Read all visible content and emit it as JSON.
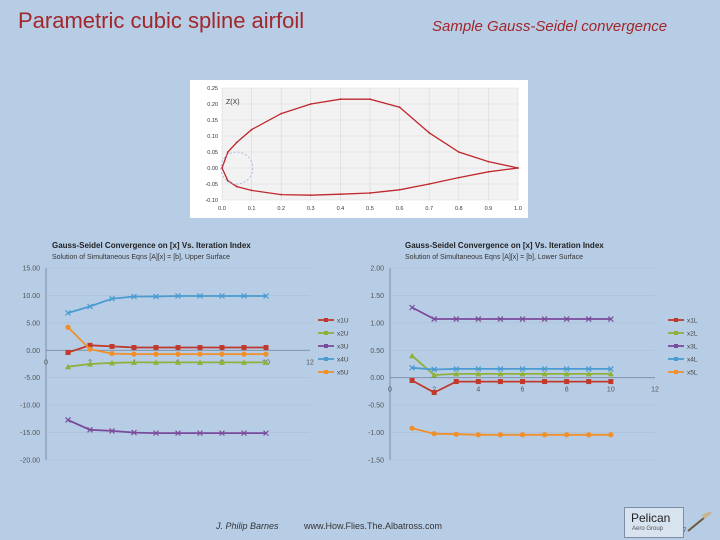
{
  "slide": {
    "title": "Parametric cubic spline airfoil",
    "subtitle": "Sample Gauss-Seidel convergence",
    "author": "J. Philip Barnes",
    "url": "www.How.Flies.The.Albatross.com",
    "logo_name": "Pelican",
    "logo_sub": "Aero Group",
    "page_number": "7"
  },
  "colors": {
    "background": "#b7cde6",
    "title": "#a2262a",
    "series_1": "#c0392b",
    "series_2": "#8fb03a",
    "series_3": "#7b4b9b",
    "series_4": "#4a9bd0",
    "series_5": "#f0902a",
    "airfoil": "#c0282d",
    "grid": "#d9d9d9"
  },
  "chart_data": [
    {
      "type": "line",
      "title": "Z(X)",
      "xlabel": "",
      "ylabel": "",
      "xlim": [
        0.0,
        1.0
      ],
      "ylim": [
        -0.1,
        0.25
      ],
      "x_ticks": [
        "0.0",
        "0.1",
        "0.2",
        "0.3",
        "0.4",
        "0.5",
        "0.6",
        "0.7",
        "0.8",
        "0.9",
        "1.0"
      ],
      "y_ticks": [
        "0.25",
        "0.20",
        "0.15",
        "0.10",
        "0.05",
        "0.00",
        "-0.05",
        "-0.10"
      ],
      "grid": true,
      "series": [
        {
          "x": [
            1.0,
            0.9,
            0.8,
            0.7,
            0.6,
            0.5,
            0.4,
            0.3,
            0.2,
            0.1,
            0.05,
            0.02,
            0.0,
            0.02,
            0.05,
            0.1,
            0.2,
            0.3,
            0.4,
            0.5,
            0.6,
            0.7,
            0.8,
            0.9,
            1.0
          ],
          "y": [
            0.0,
            0.02,
            0.05,
            0.11,
            0.19,
            0.215,
            0.215,
            0.2,
            0.17,
            0.12,
            0.08,
            0.05,
            0.0,
            -0.04,
            -0.058,
            -0.07,
            -0.083,
            -0.085,
            -0.082,
            -0.078,
            -0.068,
            -0.05,
            -0.03,
            -0.012,
            0.0
          ]
        }
      ],
      "annotation": "leading-edge circle"
    },
    {
      "type": "line",
      "title": "Gauss-Seidel Convergence on [x] Vs. Iteration Index",
      "subtitle": "Solution of Simultaneous Eqns [A][x] = [b], Upper Surface",
      "xlabel": "",
      "ylabel": "",
      "xlim": [
        0,
        12
      ],
      "ylim": [
        -20,
        15
      ],
      "x_ticks": [
        "0",
        "2",
        "4",
        "6",
        "8",
        "10",
        "12"
      ],
      "y_ticks": [
        "15.00",
        "10.00",
        "5.00",
        "0.00",
        "-5.00",
        "-10.00",
        "-15.00",
        "-20.00"
      ],
      "legend_position": "right",
      "categories": [
        1,
        2,
        3,
        4,
        5,
        6,
        7,
        8,
        9,
        10
      ],
      "series": [
        {
          "name": "x1U",
          "values": [
            -0.4,
            0.9,
            0.7,
            0.5,
            0.5,
            0.5,
            0.5,
            0.5,
            0.5,
            0.5
          ]
        },
        {
          "name": "x2U",
          "values": [
            -3.0,
            -2.5,
            -2.3,
            -2.2,
            -2.2,
            -2.2,
            -2.2,
            -2.2,
            -2.2,
            -2.2
          ]
        },
        {
          "name": "x3U",
          "values": [
            -12.7,
            -14.5,
            -14.7,
            -15.0,
            -15.1,
            -15.1,
            -15.1,
            -15.1,
            -15.1,
            -15.1
          ]
        },
        {
          "name": "x4U",
          "values": [
            6.8,
            8.0,
            9.4,
            9.8,
            9.8,
            9.9,
            9.9,
            9.9,
            9.9,
            9.9
          ]
        },
        {
          "name": "x5U",
          "values": [
            4.2,
            0.2,
            -0.6,
            -0.7,
            -0.7,
            -0.7,
            -0.7,
            -0.7,
            -0.7,
            -0.7
          ]
        }
      ]
    },
    {
      "type": "line",
      "title": "Gauss-Seidel Convergence on [x] Vs. Iteration Index",
      "subtitle": "Solution of Simultaneous Eqns [A][x] = [b], Lower Surface",
      "xlabel": "",
      "ylabel": "",
      "xlim": [
        0,
        12
      ],
      "ylim": [
        -1.5,
        2.0
      ],
      "x_ticks": [
        "0",
        "2",
        "4",
        "6",
        "8",
        "10",
        "12"
      ],
      "y_ticks": [
        "2.00",
        "1.50",
        "1.00",
        "0.50",
        "0.00",
        "-0.50",
        "-1.00",
        "-1.50"
      ],
      "legend_position": "right",
      "categories": [
        1,
        2,
        3,
        4,
        5,
        6,
        7,
        8,
        9,
        10
      ],
      "series": [
        {
          "name": "x1L",
          "values": [
            -0.05,
            -0.27,
            -0.07,
            -0.07,
            -0.07,
            -0.07,
            -0.07,
            -0.07,
            -0.07,
            -0.07
          ]
        },
        {
          "name": "x2L",
          "values": [
            0.4,
            0.05,
            0.07,
            0.07,
            0.07,
            0.07,
            0.07,
            0.07,
            0.07,
            0.07
          ]
        },
        {
          "name": "x3L",
          "values": [
            1.28,
            1.07,
            1.07,
            1.07,
            1.07,
            1.07,
            1.07,
            1.07,
            1.07,
            1.07
          ]
        },
        {
          "name": "x4L",
          "values": [
            0.18,
            0.15,
            0.16,
            0.16,
            0.16,
            0.16,
            0.16,
            0.16,
            0.16,
            0.16
          ]
        },
        {
          "name": "x5L",
          "values": [
            -0.92,
            -1.02,
            -1.03,
            -1.04,
            -1.04,
            -1.04,
            -1.04,
            -1.04,
            -1.04,
            -1.04
          ]
        }
      ]
    }
  ]
}
